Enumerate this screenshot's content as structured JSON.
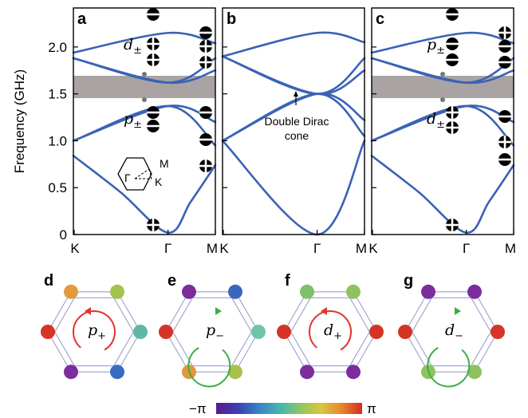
{
  "panels": {
    "a": "a",
    "b": "b",
    "c": "c",
    "d": "d",
    "e": "e",
    "f": "f",
    "g": "g"
  },
  "y_axis": {
    "label": "Frequency (GHz)",
    "ticks": [
      "0",
      "0.5",
      "1.0",
      "1.5",
      "2.0"
    ]
  },
  "x_axis": {
    "ticks": [
      "K",
      "Γ",
      "M"
    ]
  },
  "inset": {
    "label_gamma": "Γ",
    "label_k": "K",
    "label_m": "M"
  },
  "annotation": {
    "line1": "Double Dirac",
    "line2": "cone"
  },
  "mode_labels": {
    "a_upper": {
      "base": "d",
      "sub": "±"
    },
    "a_lower": {
      "base": "p",
      "sub": "±"
    },
    "c_upper": {
      "base": "p",
      "sub": "±"
    },
    "c_lower": {
      "base": "d",
      "sub": "±"
    },
    "d": {
      "base": "p",
      "sub": "+"
    },
    "e": {
      "base": "p",
      "sub": "−"
    },
    "f": {
      "base": "d",
      "sub": "+"
    },
    "g": {
      "base": "d",
      "sub": "−"
    }
  },
  "colorbar": {
    "min_label": "−π",
    "max_label": "π"
  },
  "colors": {
    "band": "#3a62b6",
    "gap": "#a9a3a4",
    "red_arrow": "#e0352b",
    "green_arrow": "#3cae48"
  },
  "chart_data": [
    {
      "type": "line",
      "panel": "a",
      "ylabel": "Frequency (GHz)",
      "ylim": [
        0,
        2.3
      ],
      "categories": [
        "K",
        "Γ",
        "M"
      ],
      "band_gap": [
        1.38,
        1.62
      ],
      "series": [
        {
          "x": [
            0,
            0.25,
            0.5,
            0.62,
            0.75
          ],
          "values": [
            0.84,
            0.45,
            0.02,
            0.35,
            0.74
          ]
        },
        {
          "x": [
            0,
            0.5,
            0.75
          ],
          "values": [
            1.0,
            1.37,
            1.2
          ]
        },
        {
          "x": [
            0,
            0.5,
            0.75
          ],
          "values": [
            1.0,
            1.37,
            0.95
          ]
        },
        {
          "x": [
            0,
            0.5,
            0.75
          ],
          "values": [
            1.88,
            1.62,
            1.75
          ]
        },
        {
          "x": [
            0,
            0.5,
            0.75
          ],
          "values": [
            1.88,
            1.62,
            1.88
          ]
        },
        {
          "x": [
            0,
            0.5,
            0.75
          ],
          "values": [
            1.94,
            2.15,
            2.04
          ]
        }
      ]
    },
    {
      "type": "line",
      "panel": "b",
      "ylim": [
        0,
        2.3
      ],
      "categories": [
        "K",
        "Γ",
        "M"
      ],
      "series": [
        {
          "x": [
            0,
            0.5,
            0.75
          ],
          "values": [
            1.0,
            0.0,
            1.0
          ]
        },
        {
          "x": [
            0,
            0.5,
            0.75
          ],
          "values": [
            1.0,
            1.5,
            1.22
          ]
        },
        {
          "x": [
            0,
            0.5,
            0.75
          ],
          "values": [
            1.0,
            1.5,
            1.05
          ]
        },
        {
          "x": [
            0,
            0.5,
            0.75
          ],
          "values": [
            1.9,
            1.5,
            1.75
          ]
        },
        {
          "x": [
            0,
            0.5,
            0.75
          ],
          "values": [
            1.9,
            1.5,
            1.88
          ]
        },
        {
          "x": [
            0,
            0.5,
            0.75
          ],
          "values": [
            1.9,
            2.15,
            2.05
          ]
        }
      ]
    },
    {
      "type": "line",
      "panel": "c",
      "ylim": [
        0,
        2.3
      ],
      "categories": [
        "K",
        "Γ",
        "M"
      ],
      "band_gap": [
        1.38,
        1.62
      ],
      "series": [
        {
          "x": [
            0,
            0.25,
            0.5,
            0.62,
            0.75
          ],
          "values": [
            0.84,
            0.45,
            0.02,
            0.35,
            0.74
          ]
        },
        {
          "x": [
            0,
            0.5,
            0.75
          ],
          "values": [
            1.0,
            1.37,
            1.2
          ]
        },
        {
          "x": [
            0,
            0.5,
            0.75
          ],
          "values": [
            1.0,
            1.37,
            0.95
          ]
        },
        {
          "x": [
            0,
            0.5,
            0.75
          ],
          "values": [
            1.88,
            1.62,
            1.75
          ]
        },
        {
          "x": [
            0,
            0.5,
            0.75
          ],
          "values": [
            1.88,
            1.62,
            1.88
          ]
        },
        {
          "x": [
            0,
            0.5,
            0.75
          ],
          "values": [
            1.94,
            2.15,
            2.04
          ]
        }
      ]
    }
  ]
}
